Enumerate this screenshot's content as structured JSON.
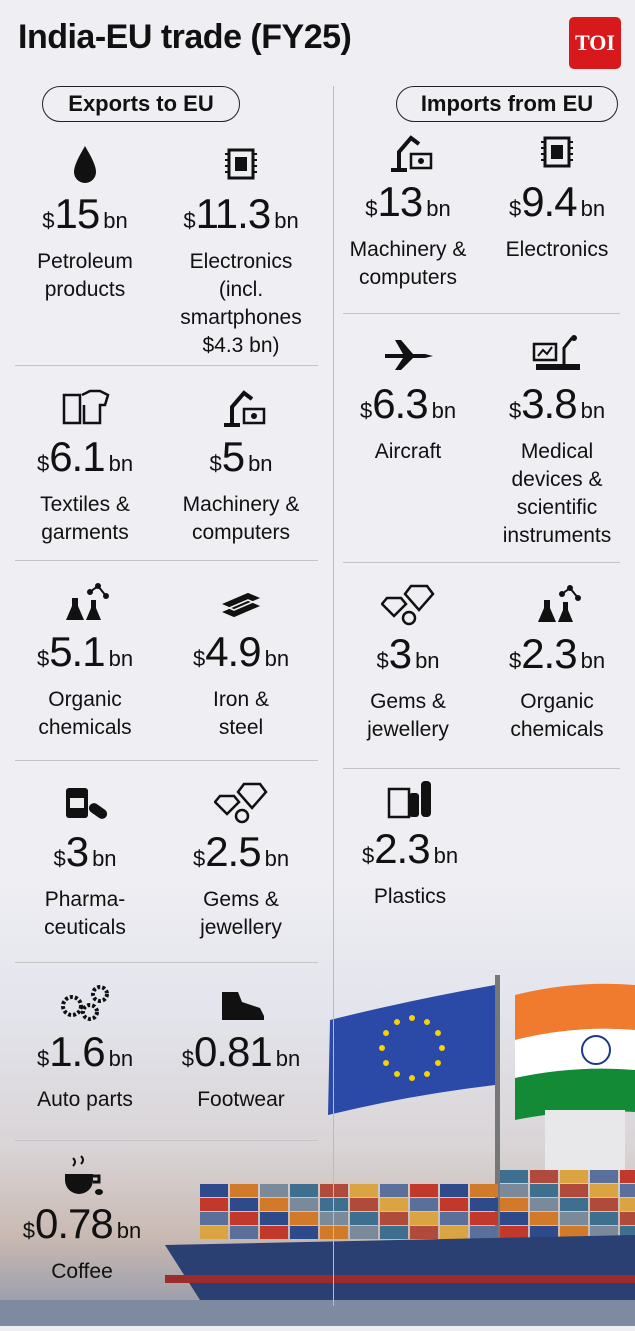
{
  "title": "India-EU trade (FY25)",
  "logo": "TOI",
  "exports": {
    "heading": "Exports to EU",
    "items": [
      {
        "value": "15",
        "label": "Petroleum\nproducts",
        "icon": "oil-drop-icon"
      },
      {
        "value": "11.3",
        "label": "Electronics\n(incl.\nsmartphones\n$4.3 bn)",
        "icon": "microchip-icon"
      },
      {
        "value": "6.1",
        "label": "Textiles &\ngarments",
        "icon": "textile-icon"
      },
      {
        "value": "5",
        "label": "Machinery &\ncomputers",
        "icon": "robot-arm-icon"
      },
      {
        "value": "5.1",
        "label": "Organic\nchemicals",
        "icon": "chemistry-icon"
      },
      {
        "value": "4.9",
        "label": "Iron &\nsteel",
        "icon": "steel-bars-icon"
      },
      {
        "value": "3",
        "label": "Pharma-\nceuticals",
        "icon": "pills-icon"
      },
      {
        "value": "2.5",
        "label": "Gems &\njewellery",
        "icon": "diamond-icon"
      },
      {
        "value": "1.6",
        "label": "Auto parts",
        "icon": "gears-icon"
      },
      {
        "value": "0.81",
        "label": "Footwear",
        "icon": "shoe-icon"
      },
      {
        "value": "0.78",
        "label": "Coffee",
        "icon": "coffee-icon"
      }
    ]
  },
  "imports": {
    "heading": "Imports from EU",
    "items": [
      {
        "value": "13",
        "label": "Machinery &\ncomputers",
        "icon": "robot-arm-icon"
      },
      {
        "value": "9.4",
        "label": "Electronics",
        "icon": "microchip-icon"
      },
      {
        "value": "6.3",
        "label": "Aircraft",
        "icon": "airplane-icon"
      },
      {
        "value": "3.8",
        "label": "Medical\ndevices &\nscientific\ninstruments",
        "icon": "lab-equipment-icon"
      },
      {
        "value": "3",
        "label": "Gems &\njewellery",
        "icon": "diamond-icon"
      },
      {
        "value": "2.3",
        "label": "Organic\nchemicals",
        "icon": "chemistry-icon"
      },
      {
        "value": "2.3",
        "label": "Plastics",
        "icon": "plastic-bottles-icon"
      }
    ]
  },
  "currency": "$",
  "unit": "bn",
  "colors": {
    "logo": "#d7191b",
    "eu_blue": "#2b4aa8",
    "eu_star": "#f5d20a",
    "saffron": "#f07b2e",
    "green": "#138a36"
  }
}
